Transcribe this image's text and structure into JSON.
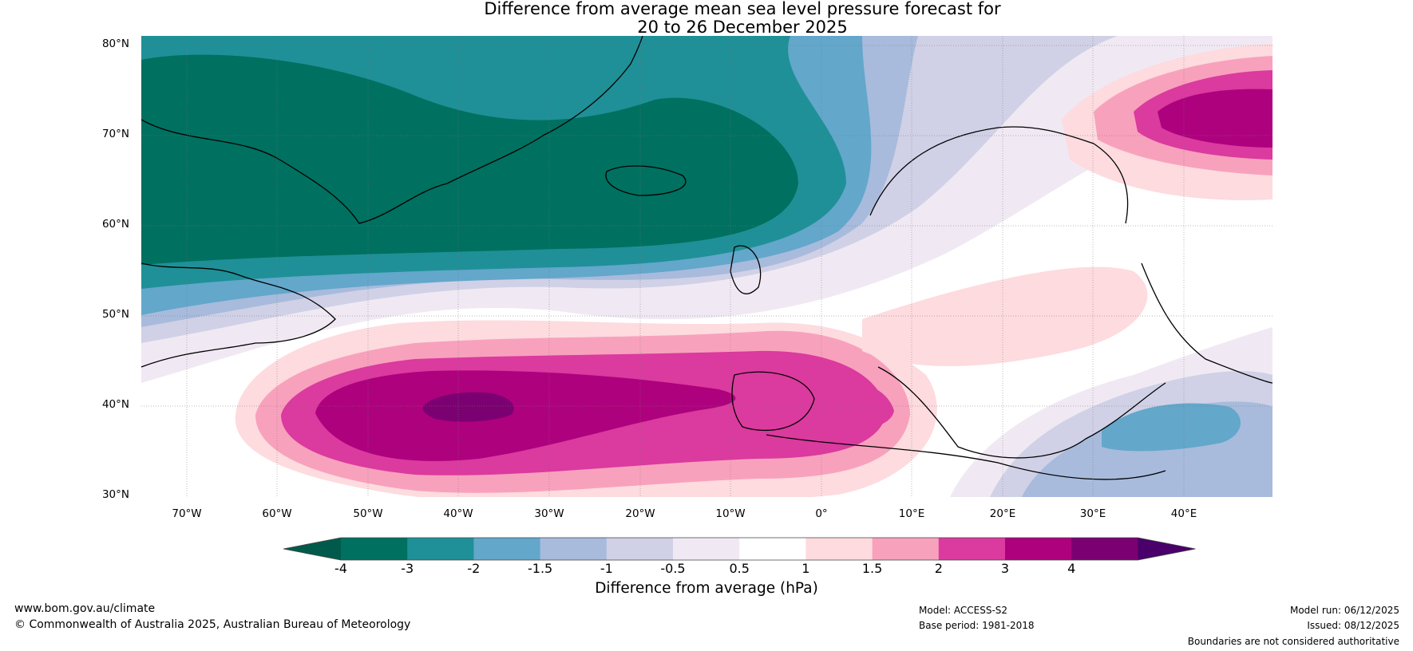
{
  "title_line1": "Difference from average mean sea level pressure forecast for",
  "title_line2": "20 to 26 December 2025",
  "lat_labels": [
    "80°N",
    "70°N",
    "60°N",
    "50°N",
    "40°N",
    "30°N"
  ],
  "lon_labels": [
    "70°W",
    "60°W",
    "50°W",
    "40°W",
    "30°W",
    "20°W",
    "10°W",
    "0°",
    "10°E",
    "20°E",
    "30°E",
    "40°E"
  ],
  "colorbar": {
    "title": "Difference from average (hPa)",
    "labels": [
      "-4",
      "-3",
      "-2",
      "-1.5",
      "-1",
      "-0.5",
      "0.5",
      "1",
      "1.5",
      "2",
      "3",
      "4"
    ],
    "colors": [
      "#005a4c",
      "#007060",
      "#1f9097",
      "#63a7cb",
      "#a8bbdc",
      "#d0d1e6",
      "#f0e9f3",
      "#ffffff",
      "#fddbdf",
      "#f8a1bd",
      "#db3a9e",
      "#ae017e",
      "#7b0071",
      "#49006a"
    ]
  },
  "footer": {
    "website": "www.bom.gov.au/climate",
    "copyright": "© Commonwealth of Australia 2025, Australian Bureau of Meteorology",
    "model": "Model: ACCESS-S2",
    "base_period": "Base period: 1981-2018",
    "model_run": "Model run: 06/12/2025",
    "issued": "Issued: 08/12/2025",
    "disclaimer": "Boundaries are not considered authoritative"
  }
}
